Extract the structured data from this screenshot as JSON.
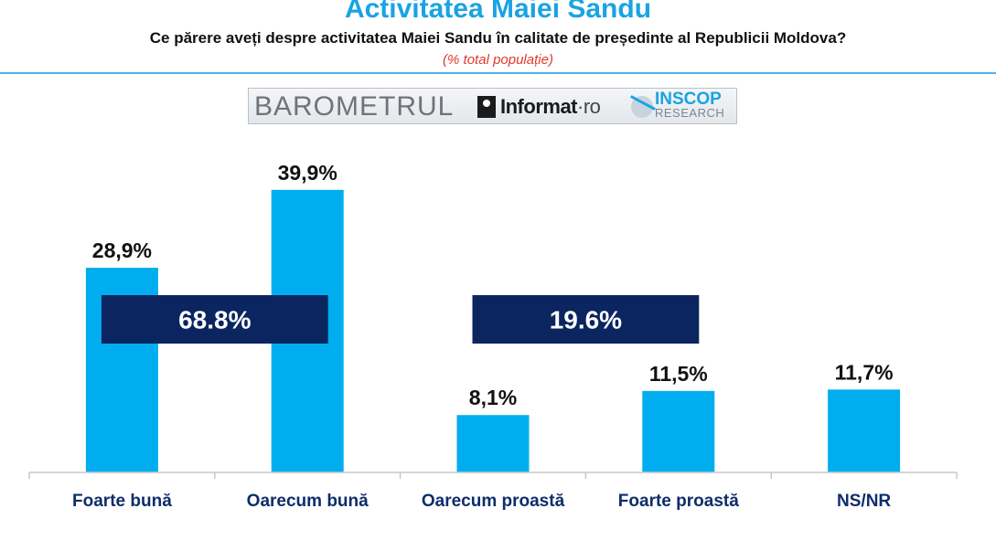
{
  "header": {
    "title": "Activitatea Maiei Sandu",
    "subtitle": "Ce părere aveți despre activitatea Maiei Sandu în calitate de președinte al Republicii Moldova?",
    "note": "(% total populație)"
  },
  "logos": {
    "barometrul": "BAROMETRUL",
    "informat_main": "Informat",
    "informat_suffix": "·ro",
    "inscop_name": "INSCOP",
    "inscop_sub": "RESEARCH"
  },
  "chart_data": {
    "type": "bar",
    "title": "Activitatea Maiei Sandu",
    "categories": [
      "Foarte bună",
      "Oarecum bună",
      "Oarecum proastă",
      "Foarte proastă",
      "NS/NR"
    ],
    "values": [
      28.9,
      39.9,
      8.1,
      11.5,
      11.7
    ],
    "value_labels": [
      "28,9%",
      "39,9%",
      "8,1%",
      "11,5%",
      "11,7%"
    ],
    "ylim": [
      0,
      40
    ],
    "grid": false,
    "bar_color": "#00aeef",
    "group_totals": [
      {
        "label": "68.8%",
        "categories": [
          0,
          1
        ]
      },
      {
        "label": "19.6%",
        "categories": [
          2,
          3
        ]
      }
    ],
    "group_color": "#0b2560"
  }
}
